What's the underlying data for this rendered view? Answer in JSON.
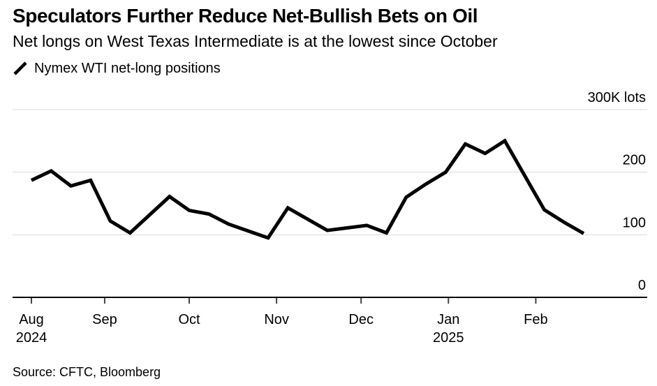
{
  "header": {
    "title": "Speculators Further Reduce Net-Bullish Bets on Oil",
    "subtitle": "Net longs on West Texas Intermediate is at the lowest since October"
  },
  "legend": {
    "label": "Nymex WTI net-long positions",
    "marker": "diagonal-line",
    "color": "#000000"
  },
  "chart_data": {
    "type": "line",
    "series_name": "Nymex WTI net-long positions",
    "unit": "K lots",
    "x": [
      "2024-08-06",
      "2024-08-13",
      "2024-08-20",
      "2024-08-27",
      "2024-09-03",
      "2024-09-10",
      "2024-09-17",
      "2024-09-24",
      "2024-10-01",
      "2024-10-08",
      "2024-10-15",
      "2024-10-22",
      "2024-10-29",
      "2024-11-05",
      "2024-11-12",
      "2024-11-19",
      "2024-11-26",
      "2024-12-03",
      "2024-12-10",
      "2024-12-17",
      "2024-12-24",
      "2024-12-31",
      "2025-01-07",
      "2025-01-14",
      "2025-01-21",
      "2025-01-28",
      "2025-02-04",
      "2025-02-11",
      "2025-02-18"
    ],
    "values": [
      187,
      202,
      178,
      187,
      122,
      103,
      132,
      161,
      139,
      133,
      117,
      106,
      95,
      143,
      125,
      107,
      111,
      115,
      103,
      160,
      181,
      200,
      245,
      230,
      250,
      195,
      140,
      120,
      102
    ],
    "ylim": [
      0,
      300
    ],
    "yticks": [
      {
        "value": 300,
        "label": "300K lots"
      },
      {
        "value": 200,
        "label": "200"
      },
      {
        "value": 100,
        "label": "100"
      },
      {
        "value": 0,
        "label": "0"
      }
    ],
    "xticks": [
      {
        "date": "2024-08-06",
        "label": "Aug",
        "sublabel": "2024"
      },
      {
        "date": "2024-09-01",
        "label": "Sep"
      },
      {
        "date": "2024-10-01",
        "label": "Oct"
      },
      {
        "date": "2024-11-01",
        "label": "Nov"
      },
      {
        "date": "2024-12-01",
        "label": "Dec"
      },
      {
        "date": "2025-01-01",
        "label": "Jan",
        "sublabel": "2025"
      },
      {
        "date": "2025-02-01",
        "label": "Feb"
      }
    ],
    "grid": true,
    "legend_position": "top-left",
    "y_labels_position": "right",
    "colors": {
      "line": "#000000",
      "grid": "#d9d9d9",
      "axis": "#000000",
      "tick": "#444444",
      "text": "#000000",
      "background": "#ffffff"
    }
  },
  "footer": {
    "source": "Source: CFTC, Bloomberg"
  }
}
